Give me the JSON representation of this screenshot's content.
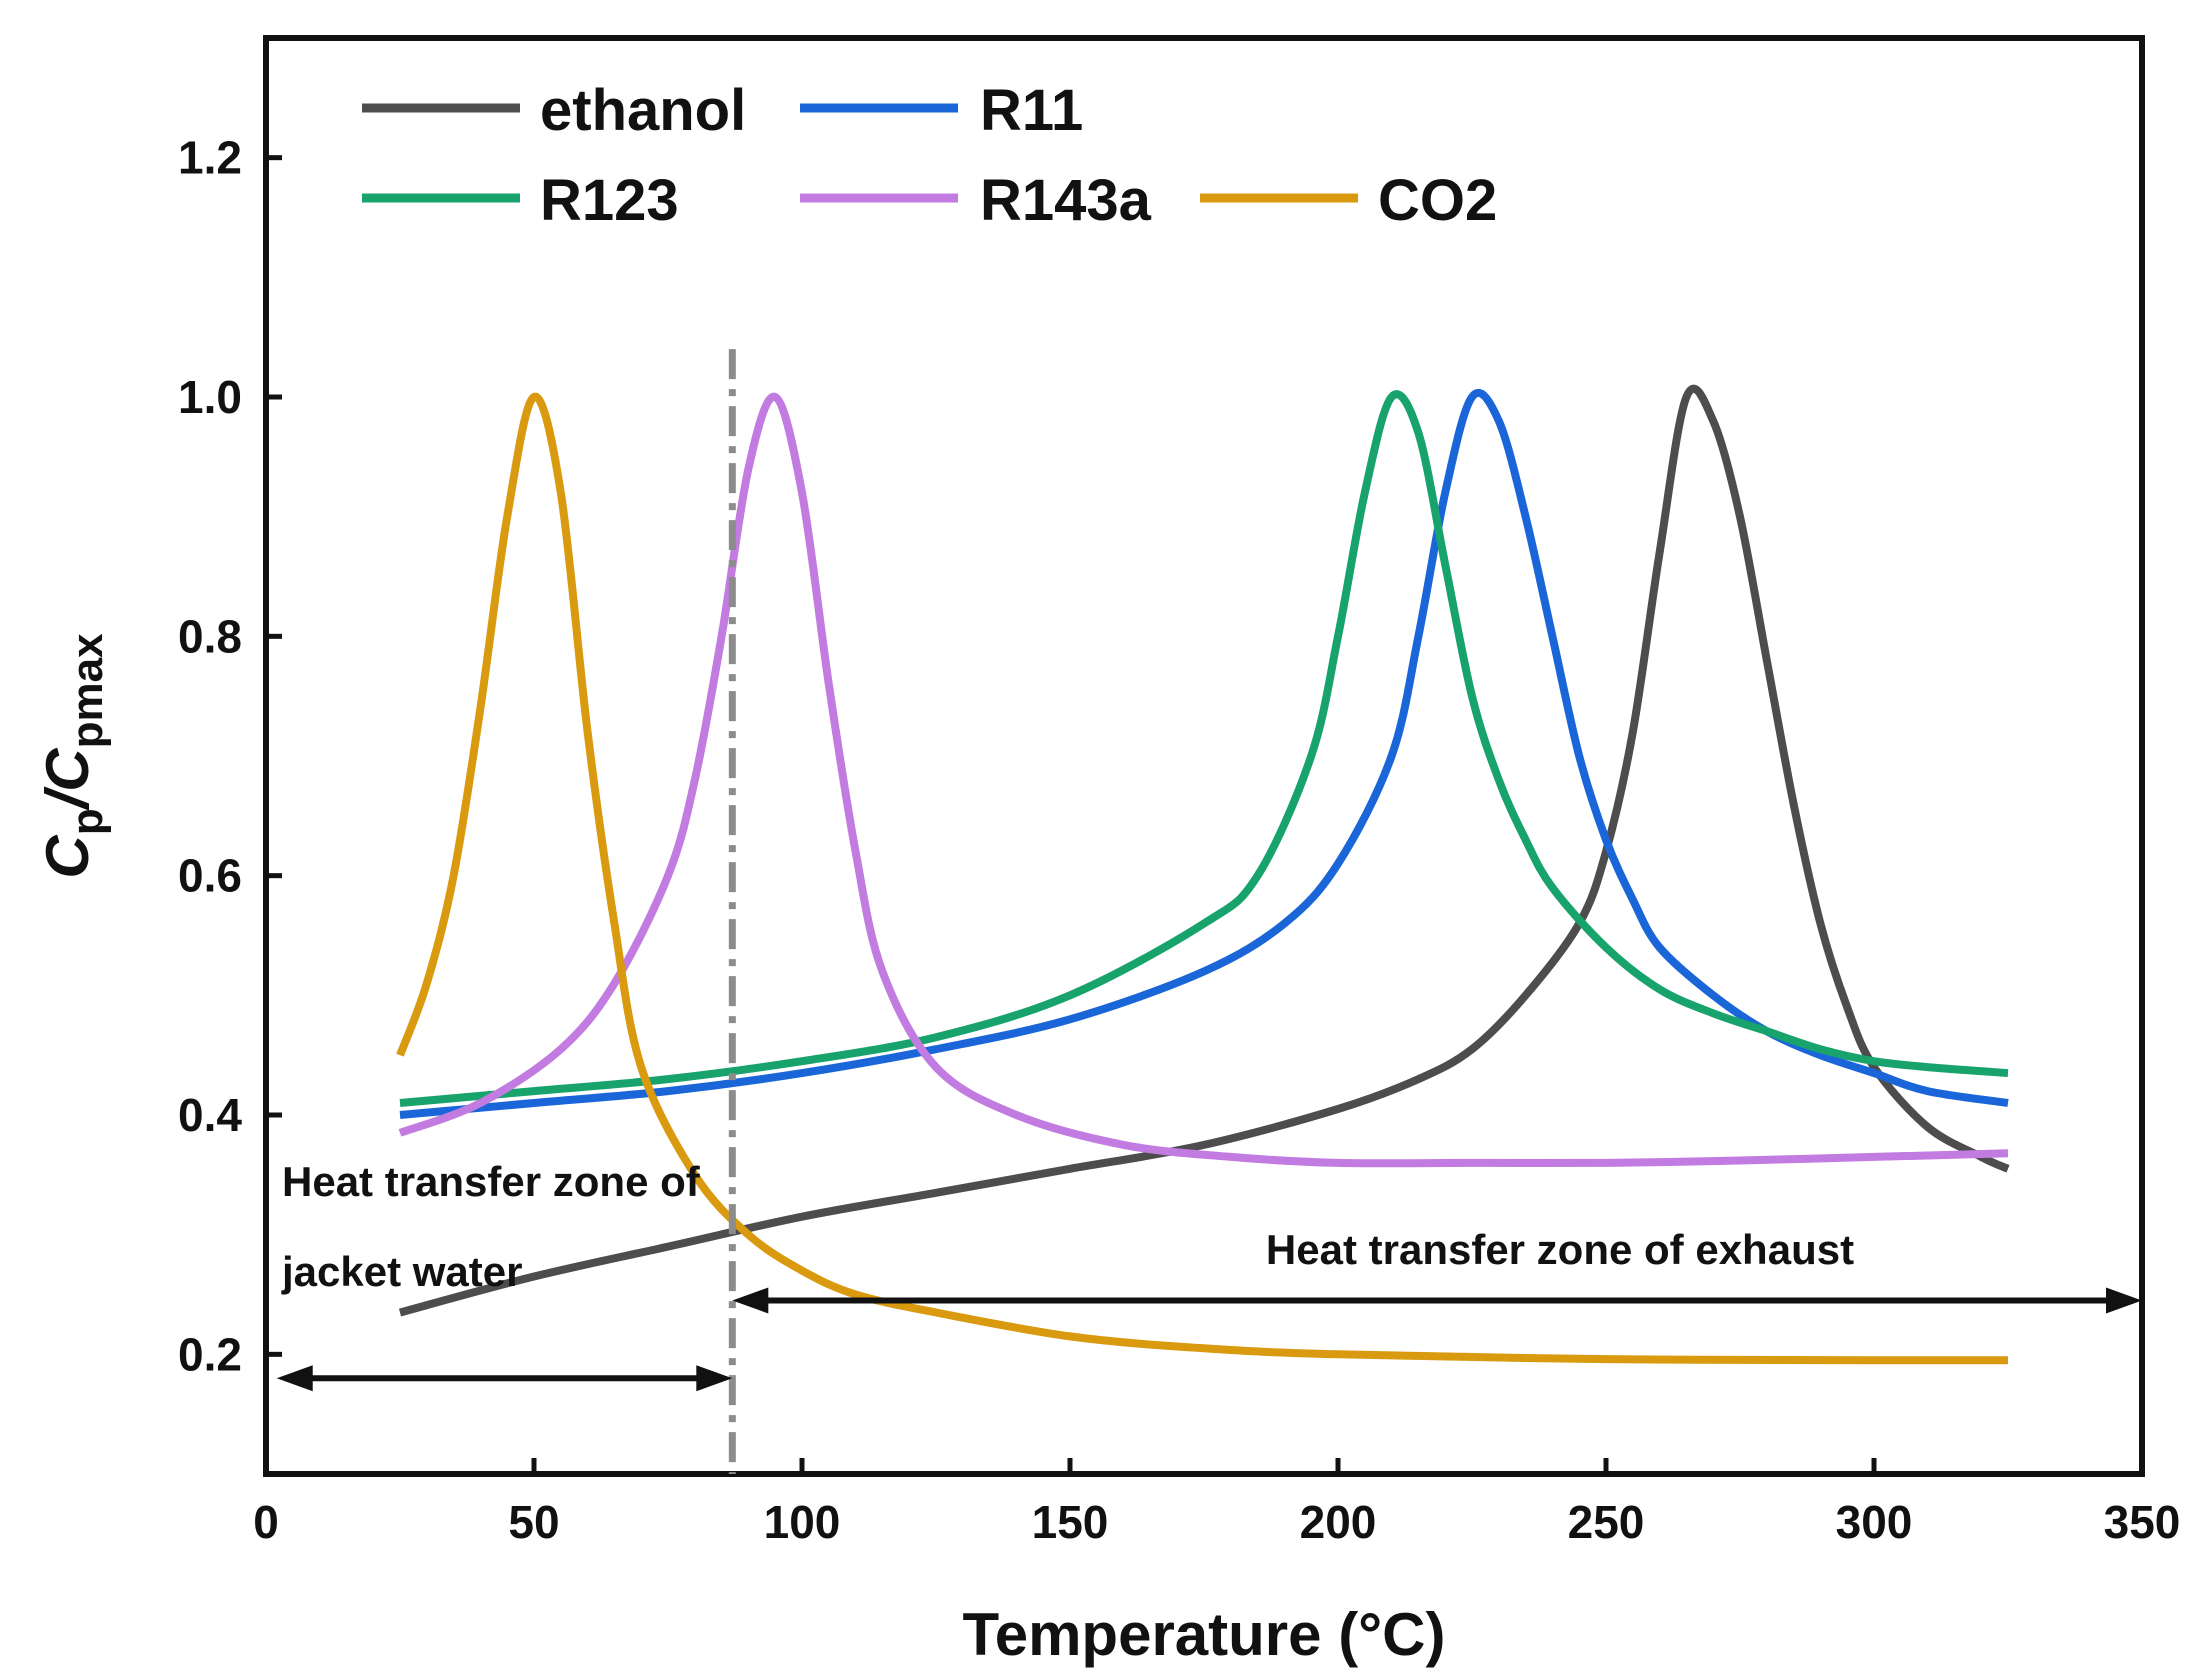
{
  "chart_data": {
    "type": "line",
    "title": "",
    "xlabel": "Temperature (°C)",
    "ylabel": {
      "main": "C",
      "sub1": "p",
      "slash": "/C",
      "sub2": "pmax"
    },
    "xlim": [
      0,
      350
    ],
    "ylim": [
      0.1,
      1.3
    ],
    "x_ticks": [
      0,
      50,
      100,
      150,
      200,
      250,
      300,
      350
    ],
    "y_ticks": [
      0.2,
      0.4,
      0.6,
      0.8,
      1.0,
      1.2
    ],
    "x_tick_labels": [
      "0",
      "50",
      "100",
      "150",
      "200",
      "250",
      "300",
      "350"
    ],
    "y_tick_labels": [
      "0.2",
      "0.4",
      "0.6",
      "0.8",
      "1.0",
      "1.2"
    ],
    "grid": false,
    "legend_position": "top",
    "series": [
      {
        "name": "ethanol",
        "color": "#4d4d4d",
        "x": [
          25,
          50,
          75,
          100,
          125,
          150,
          175,
          200,
          215,
          225,
          235,
          245,
          250,
          255,
          260,
          265,
          270,
          275,
          280,
          285,
          290,
          295,
          300,
          310,
          320,
          325
        ],
        "y": [
          0.235,
          0.265,
          0.29,
          0.315,
          0.335,
          0.355,
          0.375,
          0.405,
          0.43,
          0.455,
          0.5,
          0.56,
          0.62,
          0.72,
          0.87,
          1.0,
          0.98,
          0.9,
          0.78,
          0.66,
          0.56,
          0.49,
          0.44,
          0.39,
          0.365,
          0.355
        ]
      },
      {
        "name": "R11",
        "color": "#1a66d9",
        "x": [
          25,
          50,
          75,
          100,
          125,
          150,
          175,
          190,
          200,
          210,
          215,
          220,
          225,
          230,
          235,
          240,
          245,
          250,
          255,
          260,
          270,
          280,
          290,
          300,
          310,
          325
        ],
        "y": [
          0.4,
          0.41,
          0.42,
          0.435,
          0.455,
          0.48,
          0.52,
          0.56,
          0.61,
          0.7,
          0.8,
          0.92,
          1.0,
          0.98,
          0.9,
          0.8,
          0.7,
          0.63,
          0.58,
          0.54,
          0.5,
          0.47,
          0.45,
          0.435,
          0.42,
          0.41
        ]
      },
      {
        "name": "R123",
        "color": "#17a36b",
        "x": [
          25,
          50,
          75,
          100,
          125,
          150,
          175,
          185,
          195,
          200,
          205,
          210,
          215,
          220,
          225,
          230,
          235,
          240,
          250,
          260,
          270,
          280,
          290,
          300,
          310,
          325
        ],
        "y": [
          0.41,
          0.42,
          0.43,
          0.445,
          0.465,
          0.5,
          0.56,
          0.6,
          0.7,
          0.8,
          0.92,
          1.0,
          0.97,
          0.86,
          0.75,
          0.68,
          0.63,
          0.59,
          0.54,
          0.505,
          0.485,
          0.47,
          0.455,
          0.445,
          0.44,
          0.435
        ]
      },
      {
        "name": "R143a",
        "color": "#c27be0",
        "x": [
          25,
          40,
          55,
          65,
          75,
          80,
          85,
          90,
          95,
          100,
          105,
          110,
          115,
          125,
          140,
          160,
          180,
          200,
          225,
          250,
          275,
          300,
          325
        ],
        "y": [
          0.385,
          0.41,
          0.455,
          0.51,
          0.6,
          0.68,
          0.8,
          0.94,
          1.0,
          0.92,
          0.76,
          0.62,
          0.52,
          0.44,
          0.4,
          0.375,
          0.365,
          0.36,
          0.36,
          0.36,
          0.362,
          0.365,
          0.368
        ]
      },
      {
        "name": "CO2",
        "color": "#d99a0f",
        "x": [
          25,
          30,
          35,
          40,
          45,
          50,
          55,
          60,
          65,
          70,
          80,
          90,
          100,
          110,
          125,
          150,
          175,
          200,
          250,
          300,
          325
        ],
        "y": [
          0.45,
          0.51,
          0.6,
          0.74,
          0.9,
          1.0,
          0.92,
          0.72,
          0.56,
          0.44,
          0.35,
          0.3,
          0.27,
          0.25,
          0.235,
          0.215,
          0.205,
          0.2,
          0.196,
          0.195,
          0.195
        ]
      }
    ],
    "divider": {
      "x": 87,
      "style": "dash-dot",
      "color": "#8c8c8c"
    },
    "annotations": [
      {
        "label": "Heat transfer zone of",
        "label2": "jacket water",
        "arrow_x": [
          2,
          87
        ],
        "arrow_y": 0.18
      },
      {
        "label": "Heat transfer zone of exhaust",
        "arrow_x": [
          87,
          350
        ],
        "arrow_y": 0.245
      }
    ]
  }
}
